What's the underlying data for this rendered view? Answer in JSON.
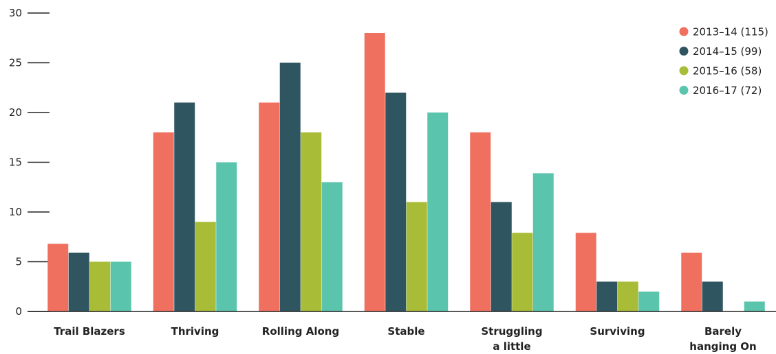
{
  "chart_data": {
    "type": "bar",
    "title": "",
    "xlabel": "",
    "ylabel": "",
    "ylim": [
      0,
      30
    ],
    "yticks": [
      0,
      5,
      10,
      15,
      20,
      25,
      30
    ],
    "grid": false,
    "legend_position": "top-right",
    "categories": [
      [
        "Trail Blazers"
      ],
      [
        "Thriving"
      ],
      [
        "Rolling Along"
      ],
      [
        "Stable"
      ],
      [
        "Struggling",
        "a little"
      ],
      [
        "Surviving"
      ],
      [
        "Barely",
        "hanging On"
      ]
    ],
    "series": [
      {
        "name": "2013–14 (115)",
        "color": "#f07060",
        "values": [
          6.8,
          18,
          21,
          28,
          18,
          7.9,
          5.9
        ]
      },
      {
        "name": "2014–15 (99)",
        "color": "#2f5560",
        "values": [
          5.9,
          21,
          25,
          22,
          11,
          3,
          3
        ]
      },
      {
        "name": "2015–16 (58)",
        "color": "#a8bc38",
        "values": [
          5,
          9,
          18,
          11,
          7.9,
          3,
          0
        ]
      },
      {
        "name": "2016–17 (72)",
        "color": "#5bc4ad",
        "values": [
          5,
          15,
          13,
          20,
          13.9,
          2,
          1
        ]
      }
    ]
  }
}
